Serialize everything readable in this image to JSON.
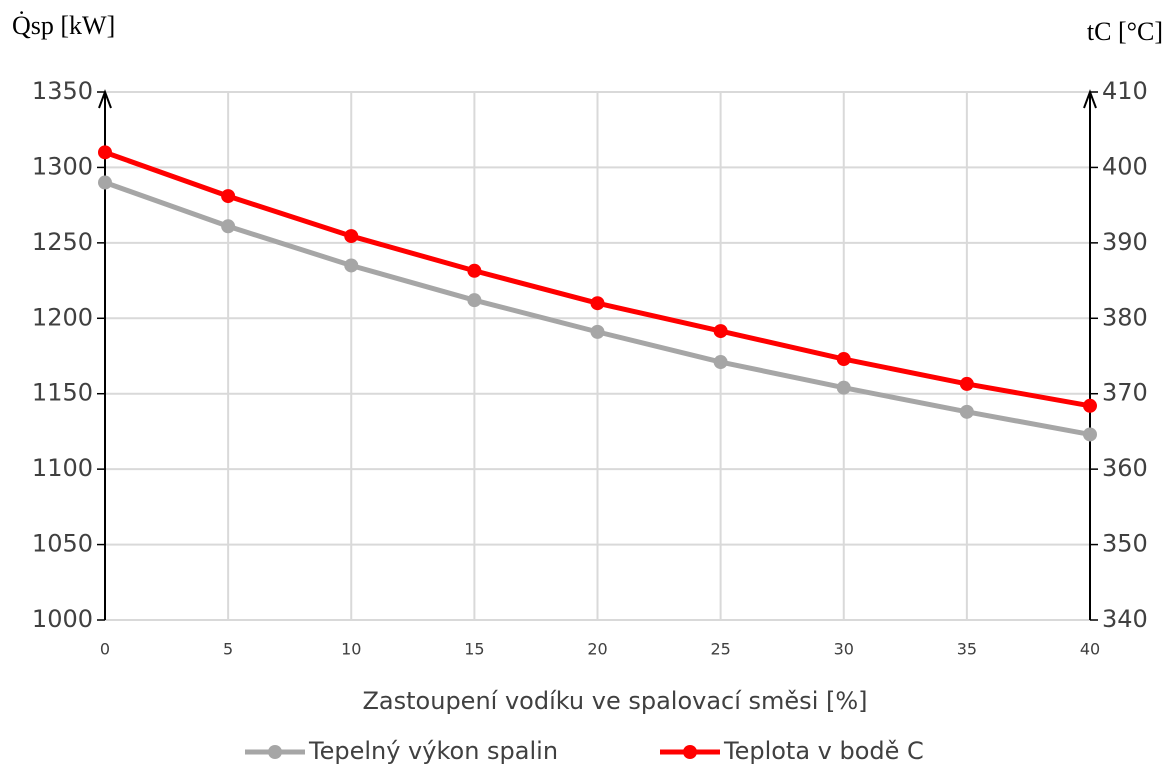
{
  "chart_data": {
    "type": "line",
    "x_label": "Zastoupení vodíku ve spalovací směsi [%]",
    "y_label": "Q̇sp [kW]",
    "y2_label": "tC [°C]",
    "x": [
      0,
      5,
      10,
      15,
      20,
      25,
      30,
      35,
      40
    ],
    "xlim": [
      0,
      40
    ],
    "xticks": [
      0,
      5,
      10,
      15,
      20,
      25,
      30,
      35,
      40
    ],
    "ylim": [
      1000,
      1350
    ],
    "yticks": [
      1000,
      1050,
      1100,
      1150,
      1200,
      1250,
      1300,
      1350
    ],
    "y2lim": [
      340,
      410
    ],
    "y2ticks": [
      340,
      350,
      360,
      370,
      380,
      390,
      400,
      410
    ],
    "grid": true,
    "legend": "bottom",
    "series": [
      {
        "name": "Tepelný výkon spalin",
        "color": "#a6a6a6",
        "values": [
          1290,
          1261,
          1235,
          1212,
          1191,
          1171,
          1154,
          1138,
          1123
        ]
      },
      {
        "name": "Teplota v bodě C",
        "color": "#ff0000",
        "axis": "y2",
        "values": [
          402.0,
          396.2,
          390.9,
          386.3,
          382.0,
          378.3,
          374.6,
          371.3,
          368.4
        ]
      }
    ]
  }
}
